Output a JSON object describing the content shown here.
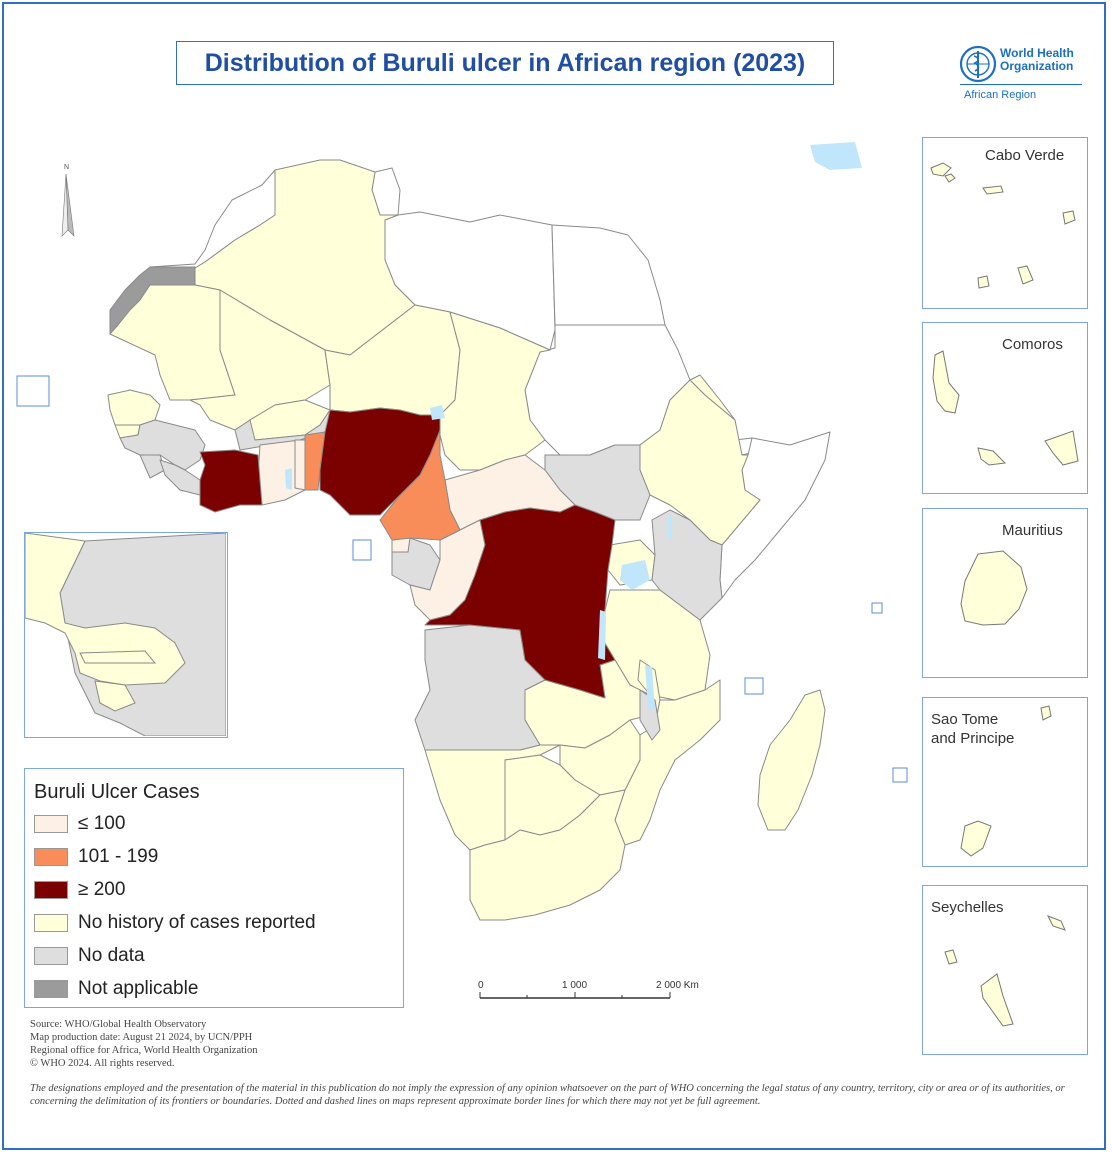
{
  "title": "Distribution of Buruli ulcer in African region (2023)",
  "logo": {
    "name_line1": "World Health",
    "name_line2": "Organization",
    "region": "African Region"
  },
  "colors": {
    "le100": "#fdf1e6",
    "c101_199": "#f98d5a",
    "ge200": "#7b0000",
    "no_history": "#ffffd9",
    "no_data": "#dedede",
    "not_applicable": "#9b9b9b",
    "non_member": "#ffffff",
    "water": "#bfe6fb",
    "frame": "#2f6fc4"
  },
  "legend": {
    "title": "Buruli Ulcer Cases",
    "items": [
      {
        "label": "≤ 100",
        "color": "#fdf1e6"
      },
      {
        "label": "101 - 199",
        "color": "#f98d5a"
      },
      {
        "label": "≥ 200",
        "color": "#7b0000"
      },
      {
        "label": "No history of cases reported",
        "color": "#ffffd9"
      },
      {
        "label": "No data",
        "color": "#dedede"
      },
      {
        "label": "Not applicable",
        "color": "#9b9b9b"
      }
    ]
  },
  "insets": {
    "cabo_verde": "Cabo Verde",
    "comoros": "Comoros",
    "mauritius": "Mauritius",
    "sao_tome_1": "Sao Tome",
    "sao_tome_2": "and Principe",
    "seychelles": "Seychelles"
  },
  "scale_bar": {
    "t0": "0",
    "t1": "1 000",
    "t2": "2 000 Km"
  },
  "north_label": "N",
  "source": [
    "Source: WHO/Global Health Observatory",
    "Map production date: August 21 2024,  by UCN/PPH",
    "Regional office for Africa, World Health Organization",
    "© WHO 2024. All rights reserved."
  ],
  "disclaimer": "The designations employed and the presentation of the material in this publication do not imply the expression of any opinion whatsoever on the part of WHO concerning the legal status of any country, territory, city or area or of its authorities, or concerning the delimitation of its frontiers or boundaries. Dotted and dashed lines on maps represent approximate border lines for which there may not yet be full agreement."
}
